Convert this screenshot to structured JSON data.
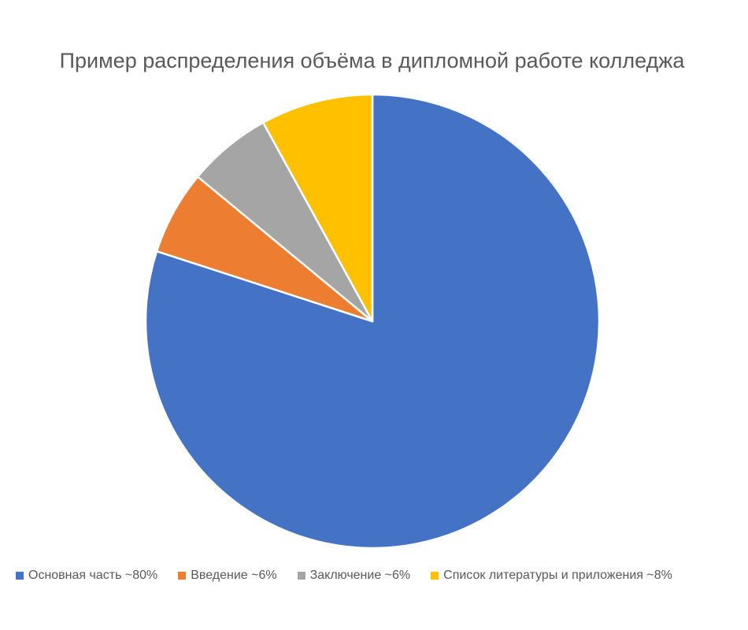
{
  "chart_data": {
    "type": "pie",
    "title": "Пример распределения объёма в дипломной работе колледжа",
    "categories": [
      "Основная часть ~80%",
      "Введение ~6%",
      "Заключение ~6%",
      "Список литературы и приложения ~8%"
    ],
    "values": [
      80,
      6,
      6,
      8
    ],
    "colors": [
      "#4472C4",
      "#ED7D31",
      "#A5A5A5",
      "#FFC000"
    ],
    "legend_position": "bottom",
    "start_angle": "12 o'clock",
    "direction": "clockwise"
  }
}
